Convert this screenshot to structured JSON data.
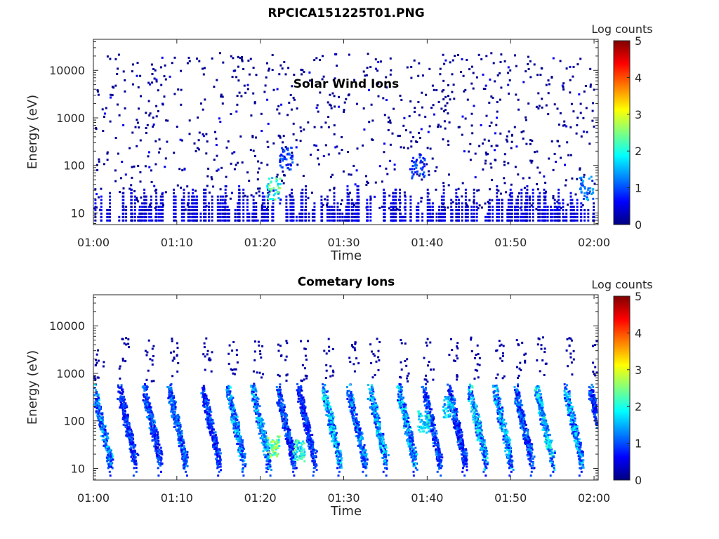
{
  "figure": {
    "title": "RPCICA151225T01.PNG"
  },
  "chart_data": [
    {
      "type": "heatmap",
      "title": "Solar Wind Ions",
      "xlabel": "Time",
      "ylabel": "Energy (eV)",
      "x_ticks": [
        "01:00",
        "01:10",
        "01:20",
        "01:30",
        "01:40",
        "01:50",
        "02:00"
      ],
      "x_range_minutes": [
        0,
        60.5
      ],
      "y_scale": "log",
      "y_ticks": [
        "10",
        "100",
        "1000",
        "10000"
      ],
      "y_range": [
        5.7,
        45000
      ],
      "colorbar": {
        "label": "Log counts",
        "ticks": [
          "0",
          "1",
          "2",
          "3",
          "4",
          "5"
        ],
        "range": [
          0,
          5
        ],
        "colormap": "jet"
      },
      "grid": false,
      "features": [
        {
          "time_min": 21.5,
          "energy_eV": 35,
          "log_counts": 2.7,
          "note": "brightest low-energy patch"
        },
        {
          "time_min": 23.0,
          "energy_eV": 150,
          "log_counts": 1.2
        },
        {
          "time_min": 38.8,
          "energy_eV": 100,
          "log_counts": 1.2
        },
        {
          "time_min": 59.0,
          "energy_eV": 35,
          "log_counts": 1.6
        }
      ],
      "background": "sparse single counts (log ~0) across 10–20000 eV"
    },
    {
      "type": "heatmap",
      "title": "Cometary Ions",
      "xlabel": "Time",
      "ylabel": "Energy (eV)",
      "x_ticks": [
        "01:00",
        "01:10",
        "01:20",
        "01:30",
        "01:40",
        "01:50",
        "02:00"
      ],
      "x_range_minutes": [
        0,
        60.5
      ],
      "y_scale": "log",
      "y_ticks": [
        "10",
        "100",
        "1000",
        "10000"
      ],
      "y_range": [
        5.7,
        45000
      ],
      "colorbar": {
        "label": "Log counts",
        "ticks": [
          "0",
          "1",
          "2",
          "3",
          "4",
          "5"
        ],
        "range": [
          0,
          5
        ],
        "colormap": "jet"
      },
      "grid": false,
      "periodic_bursts_min": [
        0,
        3,
        6,
        9,
        13,
        16,
        19,
        22,
        24.5,
        27.5,
        30.5,
        33,
        36.5,
        39.5,
        42.5,
        45,
        48,
        50.5,
        53,
        56.5,
        59.5
      ],
      "burst_profile": "high-energy onset (~300–500 eV) descending to ~15 eV within ~2 min",
      "features": [
        {
          "time_min": 21.5,
          "energy_eV": 30,
          "log_counts": 3.0
        },
        {
          "time_min": 24.5,
          "energy_eV": 25,
          "log_counts": 2.5
        },
        {
          "time_min": 39.5,
          "energy_eV": 100,
          "log_counts": 2.3
        },
        {
          "time_min": 42.5,
          "energy_eV": 200,
          "log_counts": 2.0
        }
      ]
    }
  ]
}
